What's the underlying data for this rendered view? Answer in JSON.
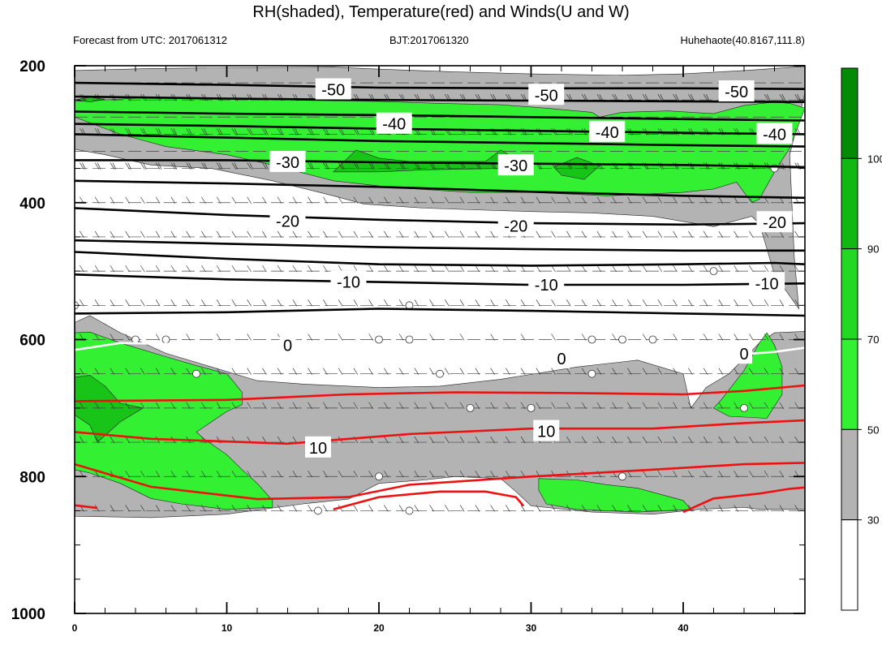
{
  "title": "RH(shaded), Temperature(red) and Winds(U and W)",
  "left_subtitle": "Forecast from UTC: 2017061312",
  "center_subtitle": "BJT:2017061320",
  "right_subtitle": "Huhehaote(40.8167,111.8)",
  "chart_data": {
    "type": "heatmap",
    "x_range": [
      0,
      48
    ],
    "y_range": [
      200,
      1000
    ],
    "y_reversed": true,
    "x_ticks": [
      "0",
      "10",
      "20",
      "30",
      "40"
    ],
    "y_ticks": [
      "200",
      "400",
      "600",
      "800",
      "1000"
    ],
    "colorbar_levels": [
      "30",
      "50",
      "70",
      "90",
      "100"
    ],
    "colorbar_colors": [
      "#ffffff",
      "#b3b3b3",
      "#33f033",
      "#22d822",
      "#11b811",
      "#058a05"
    ],
    "temp_contour_labels": [
      {
        "text": "-50",
        "x": 17,
        "y": 235
      },
      {
        "text": "-50",
        "x": 31,
        "y": 243
      },
      {
        "text": "-50",
        "x": 43.5,
        "y": 238
      },
      {
        "text": "-40",
        "x": 21,
        "y": 285
      },
      {
        "text": "-40",
        "x": 35,
        "y": 297
      },
      {
        "text": "-40",
        "x": 46,
        "y": 300
      },
      {
        "text": "-30",
        "x": 14,
        "y": 341
      },
      {
        "text": "-30",
        "x": 29,
        "y": 346
      },
      {
        "text": "-20",
        "x": 14,
        "y": 427
      },
      {
        "text": "-20",
        "x": 29,
        "y": 434
      },
      {
        "text": "-20",
        "x": 46,
        "y": 429
      },
      {
        "text": "-10",
        "x": 18,
        "y": 516
      },
      {
        "text": "-10",
        "x": 31,
        "y": 520
      },
      {
        "text": "-10",
        "x": 45.5,
        "y": 518
      },
      {
        "text": "0",
        "x": 14,
        "y": 608
      },
      {
        "text": "0",
        "x": 32,
        "y": 628
      },
      {
        "text": "0",
        "x": 44,
        "y": 621
      },
      {
        "text": "10",
        "x": 16,
        "y": 758
      },
      {
        "text": "10",
        "x": 31,
        "y": 734
      }
    ]
  }
}
